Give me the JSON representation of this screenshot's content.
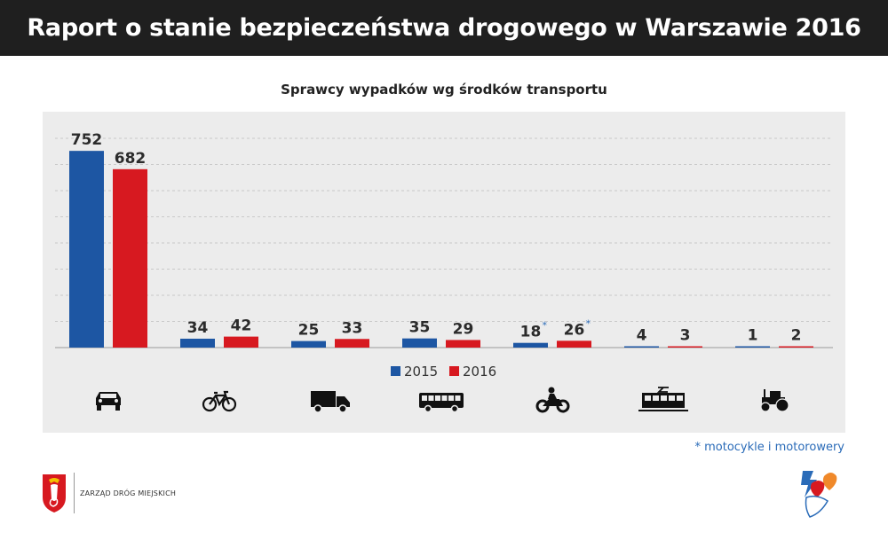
{
  "header": {
    "title": "Raport o stanie bezpieczeństwa drogowego w Warszawie 2016"
  },
  "chart_data": {
    "type": "bar",
    "title": "Sprawcy wypadków wg środków transportu",
    "categories": [
      "car",
      "bicycle",
      "truck",
      "bus",
      "motorcycle",
      "tram",
      "tractor"
    ],
    "category_icons": [
      "car-icon",
      "bicycle-icon",
      "truck-icon",
      "bus-icon",
      "motorcycle-icon",
      "tram-icon",
      "tractor-icon"
    ],
    "series": [
      {
        "name": "2015",
        "color": "#1d56a3",
        "values": [
          752,
          34,
          25,
          35,
          18,
          4,
          1
        ]
      },
      {
        "name": "2016",
        "color": "#d71920",
        "values": [
          682,
          42,
          33,
          29,
          26,
          3,
          2
        ]
      }
    ],
    "value_markers": [
      {
        "category": "motorcycle",
        "marker": "*"
      }
    ],
    "ylim": [
      0,
      800
    ],
    "grid": true,
    "legend": "below-bars"
  },
  "footnote": "* motocykle i motorowery",
  "footer": {
    "org_name": "ZARZĄD DRÓG MIEJSKICH"
  }
}
